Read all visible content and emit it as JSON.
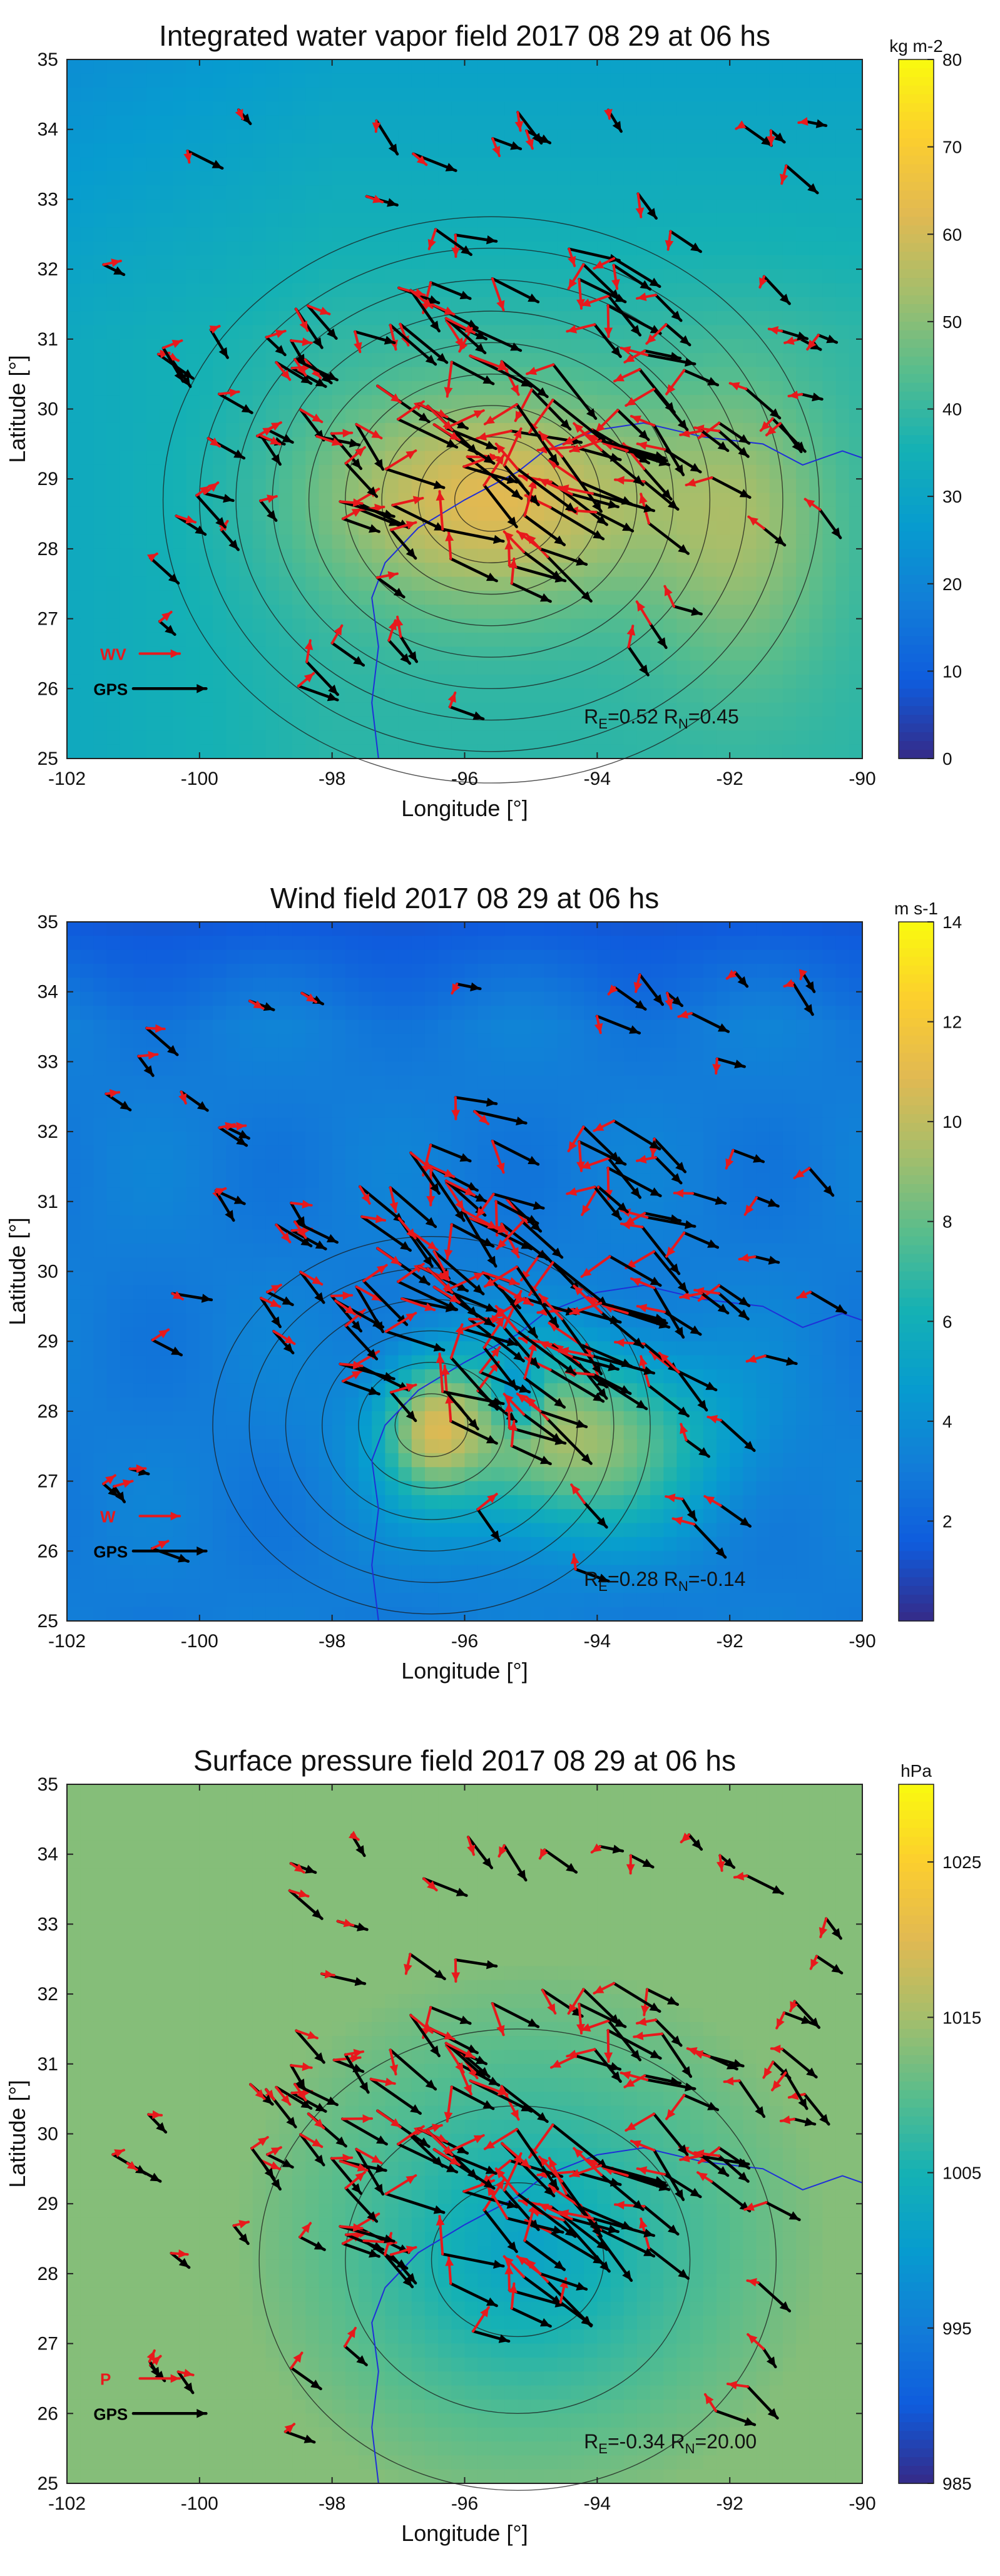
{
  "figure": {
    "panels": [
      {
        "title": "Integrated water vapor field 2017 08 29 at 06 hs",
        "colorbar_label": "kg m-2",
        "colorbar_ticks": [
          0,
          10,
          20,
          30,
          40,
          50,
          60,
          70,
          80
        ],
        "legend_model": "WV",
        "legend_gps": "GPS",
        "stat_e": "0.52",
        "stat_n": "0.45",
        "xlabel": "Longitude [°]",
        "ylabel": "Latitude [°]"
      },
      {
        "title": "Wind field 2017 08 29 at 06 hs",
        "colorbar_label": "m s-1",
        "colorbar_ticks": [
          2,
          4,
          6,
          8,
          10,
          12,
          14
        ],
        "legend_model": "W",
        "legend_gps": "GPS",
        "stat_e": "0.28",
        "stat_n": "-0.14",
        "xlabel": "Longitude [°]",
        "ylabel": "Latitude [°]"
      },
      {
        "title": "Surface pressure field 2017 08 29 at 06 hs",
        "colorbar_label": "hPa",
        "colorbar_ticks": [
          985,
          995,
          1005,
          1015,
          1025
        ],
        "legend_model": "P",
        "legend_gps": "GPS",
        "stat_e": "-0.34",
        "stat_n": "20.00",
        "xlabel": "Longitude [°]",
        "ylabel": "Latitude [°]"
      }
    ]
  },
  "colors": {
    "model_arrow": "#e8191c",
    "gps_arrow": "#000000",
    "coast": "#1f2fd8",
    "contour": "#1a1a1a"
  },
  "chart_data": [
    {
      "type": "heatmap",
      "title": "Integrated water vapor field 2017 08 29 at 06 hs",
      "xlabel": "Longitude [°]",
      "ylabel": "Latitude [°]",
      "xlim": [
        -102,
        -90
      ],
      "ylim": [
        25,
        35
      ],
      "xticks": [
        -102,
        -100,
        -98,
        -96,
        -94,
        -92,
        -90
      ],
      "yticks": [
        25,
        26,
        27,
        28,
        29,
        30,
        31,
        32,
        33,
        34,
        35
      ],
      "colorbar": {
        "label": "kg m-2",
        "range": [
          0,
          80
        ],
        "ticks": [
          0,
          10,
          20,
          30,
          40,
          50,
          60,
          70,
          80
        ]
      },
      "field_max": {
        "lon": -95.6,
        "lat": 28.7,
        "value": 64
      },
      "stats": {
        "R_E": 0.52,
        "R_N": 0.45
      },
      "series": [
        {
          "name": "WV"
        },
        {
          "name": "GPS"
        }
      ]
    },
    {
      "type": "heatmap",
      "title": "Wind field 2017 08 29 at 06 hs",
      "xlabel": "Longitude [°]",
      "ylabel": "Latitude [°]",
      "xlim": [
        -102,
        -90
      ],
      "ylim": [
        25,
        35
      ],
      "xticks": [
        -102,
        -100,
        -98,
        -96,
        -94,
        -92,
        -90
      ],
      "yticks": [
        25,
        26,
        27,
        28,
        29,
        30,
        31,
        32,
        33,
        34,
        35
      ],
      "colorbar": {
        "label": "m s-1",
        "range": [
          0,
          14
        ],
        "ticks": [
          2,
          4,
          6,
          8,
          10,
          12,
          14
        ]
      },
      "field_max": {
        "lon": -96.5,
        "lat": 27.8,
        "value": 14
      },
      "stats": {
        "R_E": 0.28,
        "R_N": -0.14
      },
      "series": [
        {
          "name": "W"
        },
        {
          "name": "GPS"
        }
      ]
    },
    {
      "type": "heatmap",
      "title": "Surface pressure field 2017 08 29 at 06 hs",
      "xlabel": "Longitude [°]",
      "ylabel": "Latitude [°]",
      "xlim": [
        -102,
        -90
      ],
      "ylim": [
        25,
        35
      ],
      "xticks": [
        -102,
        -100,
        -98,
        -96,
        -94,
        -92,
        -90
      ],
      "yticks": [
        25,
        26,
        27,
        28,
        29,
        30,
        31,
        32,
        33,
        34,
        35
      ],
      "colorbar": {
        "label": "hPa",
        "range": [
          985,
          1030
        ],
        "ticks": [
          985,
          995,
          1005,
          1015,
          1025
        ]
      },
      "field_min": {
        "lon": -95.2,
        "lat": 28.1,
        "value": 1002
      },
      "stats": {
        "R_E": -0.34,
        "R_N": 20.0
      },
      "series": [
        {
          "name": "P"
        },
        {
          "name": "GPS"
        }
      ]
    }
  ]
}
